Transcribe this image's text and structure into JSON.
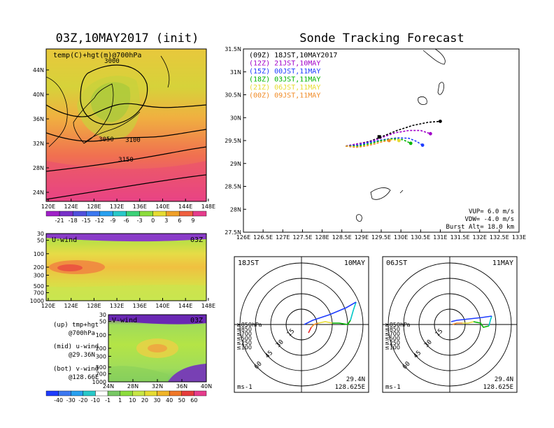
{
  "left_title": "03Z,10MAY2017 (init)",
  "right_title": "Sonde Tracking Forecast",
  "map_panel": {
    "label": "temp(C)+hgt(m)@700hPa",
    "lat_ticks": [
      "44N",
      "40N",
      "36N",
      "32N",
      "28N",
      "24N"
    ],
    "lon_ticks": [
      "120E",
      "124E",
      "128E",
      "132E",
      "136E",
      "140E",
      "144E",
      "148E"
    ],
    "contours": [
      "3000",
      "3050",
      "3100",
      "3150"
    ],
    "colorbar": [
      "-21",
      "-18",
      "-15",
      "-12",
      "-9",
      "-6",
      "-3",
      "0",
      "3",
      "6",
      "9"
    ]
  },
  "uwind_panel": {
    "label": "U-wind",
    "time": "03Z",
    "p_ticks": [
      "30",
      "50",
      "100",
      "200",
      "300",
      "500",
      "700",
      "1000"
    ],
    "lon_ticks": [
      "120E",
      "124E",
      "128E",
      "132E",
      "136E",
      "140E",
      "144E",
      "148E"
    ]
  },
  "vwind_panel": {
    "label": "V-wind",
    "time": "03Z",
    "p_ticks": [
      "30",
      "50",
      "100",
      "200",
      "300",
      "500",
      "700",
      "1000"
    ],
    "lat_ticks": [
      "24N",
      "28N",
      "32N",
      "36N",
      "40N"
    ],
    "colorbar": [
      "-40",
      "-30",
      "-20",
      "-10",
      "-1",
      "1",
      "10",
      "20",
      "30",
      "40",
      "50",
      "60"
    ]
  },
  "notes": [
    "(up) tmp+hgt",
    "@700hPa",
    "(mid) u-wind",
    "@29.36N",
    "(bot) v-wind",
    "@128.66E"
  ],
  "track_panel": {
    "legend": [
      {
        "text": "(09Z)  18JST,10MAY2017",
        "color": "#000000"
      },
      {
        "text": "(12Z)  21JST,10MAY",
        "color": "#a000c8"
      },
      {
        "text": "(15Z)  00JST,11MAY",
        "color": "#1e3cff"
      },
      {
        "text": "(18Z)  03JST,11MAY",
        "color": "#00b400"
      },
      {
        "text": "(21Z)  06JST,11MAY",
        "color": "#e6dc32"
      },
      {
        "text": "(00Z)  09JST,11MAY",
        "color": "#f08c28"
      }
    ],
    "y_ticks": [
      "31.5N",
      "31N",
      "30.5N",
      "30N",
      "29.5N",
      "29N",
      "28.5N",
      "28N",
      "27.5N"
    ],
    "x_ticks": [
      "126E",
      "126.5E",
      "127E",
      "127.5E",
      "128E",
      "128.5E",
      "129E",
      "129.5E",
      "130E",
      "130.5E",
      "131E",
      "131.5E",
      "132E",
      "132.5E",
      "133E"
    ],
    "params": [
      "VUP=  6.0 m/s",
      "VDW= -4.0 m/s",
      "Burst Alt= 18.0 km"
    ]
  },
  "hodo_left": {
    "time": "18JST",
    "date": "10MAY",
    "rings": [
      "15",
      "30",
      "45",
      "60"
    ],
    "levels": [
      {
        "text": "≥850hPa",
        "color": "#e62828"
      },
      {
        "text": "≤850",
        "color": "#f08c28"
      },
      {
        "text": "≤700",
        "color": "#e6dc32"
      },
      {
        "text": "≤500",
        "color": "#00b400"
      },
      {
        "text": "≤250",
        "color": "#00c8c8"
      },
      {
        "text": "≤100",
        "color": "#1e3cff"
      }
    ],
    "units": "ms-1",
    "lat": "29.4N",
    "lon": "128.625E"
  },
  "hodo_right": {
    "time": "06JST",
    "date": "11MAY",
    "rings": [
      "15",
      "30",
      "45",
      "60"
    ],
    "levels": [
      {
        "text": "≥850hPa",
        "color": "#e62828"
      },
      {
        "text": "≤850",
        "color": "#f08c28"
      },
      {
        "text": "≤700",
        "color": "#e6dc32"
      },
      {
        "text": "≤500",
        "color": "#00b400"
      },
      {
        "text": "≤250",
        "color": "#00c8c8"
      },
      {
        "text": "≤100",
        "color": "#1e3cff"
      }
    ],
    "units": "ms-1",
    "lat": "29.4N",
    "lon": "128.625E"
  },
  "chart_data": {
    "type": "line",
    "x_range": [
      126,
      133
    ],
    "y_range": [
      27.5,
      31.5
    ],
    "series": [
      {
        "name": "(09Z)",
        "color": "#000000",
        "x": [
          128.6,
          128.85,
          129.2,
          129.5,
          129.9,
          130.3,
          130.7,
          131.0
        ],
        "y": [
          29.38,
          29.42,
          29.48,
          29.58,
          29.72,
          29.83,
          29.9,
          29.92
        ]
      },
      {
        "name": "(12Z)",
        "color": "#a000c8",
        "x": [
          128.6,
          128.85,
          129.2,
          129.5,
          129.85,
          130.2,
          130.5,
          130.75
        ],
        "y": [
          29.38,
          29.42,
          29.47,
          29.56,
          29.67,
          29.72,
          29.72,
          29.65
        ]
      },
      {
        "name": "(15Z)",
        "color": "#1e3cff",
        "x": [
          128.6,
          128.9,
          129.2,
          129.55,
          129.9,
          130.2,
          130.4,
          130.55
        ],
        "y": [
          29.38,
          29.4,
          29.46,
          29.52,
          29.56,
          29.55,
          29.48,
          29.4
        ]
      },
      {
        "name": "(18Z)",
        "color": "#00b400",
        "x": [
          128.6,
          128.9,
          129.2,
          129.5,
          129.8,
          130.05,
          130.25
        ],
        "y": [
          29.38,
          29.38,
          29.43,
          29.5,
          29.54,
          29.52,
          29.44
        ]
      },
      {
        "name": "(21Z)",
        "color": "#e6dc32",
        "x": [
          128.6,
          128.9,
          129.2,
          129.5,
          129.75,
          129.95
        ],
        "y": [
          29.38,
          29.36,
          29.4,
          29.47,
          29.52,
          29.5
        ]
      },
      {
        "name": "(00Z)",
        "color": "#f08c28",
        "x": [
          128.6,
          128.85,
          129.1,
          129.35,
          129.55,
          129.7
        ],
        "y": [
          29.38,
          29.35,
          29.38,
          29.43,
          29.48,
          29.5
        ]
      }
    ]
  }
}
